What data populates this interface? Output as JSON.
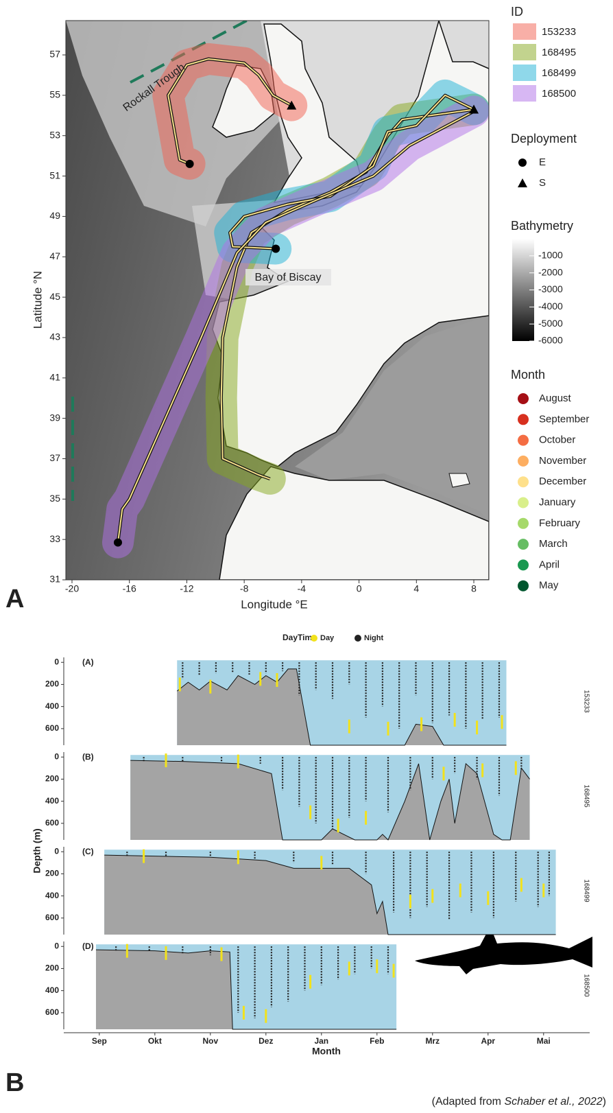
{
  "map": {
    "type": "map",
    "label": "A",
    "x_label": "Longitude °E",
    "y_label": "Latitude °N",
    "xlim": [
      -20.43,
      9.05
    ],
    "ylim": [
      31,
      58.7
    ],
    "xticks": [
      -20,
      -16,
      -12,
      -8,
      -4,
      0,
      4,
      8
    ],
    "yticks": [
      31,
      33,
      35,
      37,
      39,
      41,
      43,
      45,
      47,
      49,
      51,
      53,
      55,
      57
    ],
    "annotations": [
      "Rockall Trough",
      "Bay of Biscay"
    ],
    "id_title": "ID",
    "tracks": [
      {
        "name": "153233",
        "color": "#f2604f",
        "lon": [
          -11.8,
          -12.5,
          -12.8,
          -13.3,
          -12,
          -10.5,
          -8,
          -7,
          -6,
          -4.7
        ],
        "lat": [
          51.6,
          51.8,
          53,
          55,
          56.5,
          56.8,
          56.6,
          56,
          55,
          54.5
        ]
      },
      {
        "name": "168495",
        "color": "#86a81e",
        "lon": [
          8,
          5,
          3,
          2,
          0.5,
          -2,
          -5,
          -7.5,
          -8.5,
          -9.5,
          -9.6,
          -9.5,
          -7,
          -6.2
        ],
        "lat": [
          54.3,
          54,
          53.8,
          53,
          51.2,
          50.2,
          49.3,
          48.2,
          46.5,
          43,
          40,
          37,
          36.2,
          36
        ]
      },
      {
        "name": "168499",
        "color": "#1fb2d6",
        "lon": [
          8,
          6,
          4,
          2,
          1,
          -2,
          -5,
          -8,
          -9,
          -8.8,
          -5.8
        ],
        "lat": [
          54.3,
          55,
          53.5,
          53.2,
          51.5,
          50,
          49.6,
          49,
          48.2,
          47.5,
          47.4
        ]
      },
      {
        "name": "168500",
        "color": "#b070e8",
        "lon": [
          8,
          3.5,
          1,
          -3,
          -6.5,
          -8.5,
          -11,
          -13.5,
          -16,
          -16.5,
          -16.8
        ],
        "lat": [
          54.2,
          52.5,
          51,
          49.8,
          48.7,
          47.2,
          43,
          39,
          35,
          34.5,
          32.85
        ]
      }
    ],
    "deployment_title": "Deployment",
    "deployment": [
      "E",
      "S"
    ],
    "markers": [
      {
        "deployment": "E",
        "lon": -11.8,
        "lat": 51.6
      },
      {
        "deployment": "E",
        "lon": -5.8,
        "lat": 47.4
      },
      {
        "deployment": "E",
        "lon": -16.8,
        "lat": 32.85
      },
      {
        "deployment": "S",
        "lon": -4.7,
        "lat": 54.5
      },
      {
        "deployment": "S",
        "lon": 8,
        "lat": 54.3
      }
    ],
    "bathymetry_title": "Bathymetry",
    "bathymetry_lim": [
      0,
      -6000
    ],
    "bathymetry_ticks": [
      -1000,
      -2000,
      -3000,
      -4000,
      -5000,
      -6000
    ],
    "month_title": "Month",
    "months": [
      {
        "name": "August",
        "color": "#a50f15"
      },
      {
        "name": "September",
        "color": "#d7301f"
      },
      {
        "name": "October",
        "color": "#f46d43"
      },
      {
        "name": "November",
        "color": "#fdae61"
      },
      {
        "name": "December",
        "color": "#fee08b"
      },
      {
        "name": "January",
        "color": "#d9ef8b"
      },
      {
        "name": "February",
        "color": "#a6d96a"
      },
      {
        "name": "March",
        "color": "#66bd63"
      },
      {
        "name": "April",
        "color": "#1a9850"
      },
      {
        "name": "May",
        "color": "#00562e"
      }
    ]
  },
  "depth_chart": {
    "type": "area",
    "label": "B",
    "legend_title": "DayTime",
    "legend": [
      {
        "name": "Day",
        "color": "#f2e21c"
      },
      {
        "name": "Night",
        "color": "#222222"
      }
    ],
    "y_label": "Depth (m)",
    "x_label": "Month",
    "categories": [
      "Sep",
      "Okt",
      "Nov",
      "Dez",
      "Jan",
      "Feb",
      "Mrz",
      "Apr",
      "Mai"
    ],
    "xlim": [
      -0.64,
      8.83
    ],
    "ylim": [
      -45,
      750
    ],
    "yticks": [
      0,
      200,
      400,
      600
    ],
    "panels": [
      {
        "label": "(A)",
        "id": "153233",
        "seafloor": {
          "x": [
            1.4,
            1.6,
            1.8,
            2.0,
            2.3,
            2.5,
            2.8,
            3.0,
            3.2,
            3.4,
            3.55,
            3.8,
            5.5,
            5.7,
            6.0,
            6.2,
            7.33
          ],
          "depth": [
            260,
            180,
            250,
            170,
            250,
            120,
            200,
            120,
            180,
            60,
            60,
            750,
            750,
            560,
            580,
            750,
            750
          ]
        },
        "night": {
          "x": [
            1.5,
            1.8,
            2.1,
            2.4,
            2.7,
            3.0,
            3.3,
            3.6,
            3.9,
            4.2,
            4.5,
            4.8,
            5.1,
            5.4,
            5.7,
            6.0,
            6.3,
            6.6,
            6.9,
            7.2
          ],
          "depth": [
            150,
            120,
            100,
            90,
            110,
            100,
            80,
            300,
            250,
            330,
            200,
            500,
            400,
            600,
            300,
            550,
            480,
            600,
            520,
            500
          ]
        },
        "day": {
          "x": [
            1.45,
            2.0,
            2.9,
            3.2,
            4.5,
            5.2,
            5.8,
            6.4,
            6.8,
            7.25
          ],
          "depth": [
            200,
            220,
            150,
            160,
            580,
            600,
            560,
            520,
            590,
            540
          ]
        }
      },
      {
        "label": "(B)",
        "id": "168495",
        "seafloor": {
          "x": [
            0.56,
            1.5,
            2.5,
            3.1,
            3.3,
            4.0,
            4.2,
            4.6,
            5.0,
            5.1,
            5.2,
            5.5,
            5.75,
            5.95,
            6.15,
            6.3,
            6.4,
            6.6,
            6.8,
            7.1,
            7.25,
            7.4,
            7.6,
            7.75
          ],
          "depth": [
            30,
            40,
            60,
            150,
            750,
            750,
            650,
            750,
            750,
            700,
            750,
            400,
            60,
            750,
            400,
            200,
            600,
            60,
            150,
            700,
            750,
            750,
            100,
            200
          ]
        },
        "night": {
          "x": [
            0.8,
            1.5,
            2.2,
            2.9,
            3.3,
            3.6,
            3.9,
            4.2,
            4.5,
            4.8,
            5.2,
            5.6,
            6.0,
            6.4,
            6.8,
            7.2,
            7.6
          ],
          "depth": [
            40,
            40,
            50,
            60,
            300,
            450,
            600,
            650,
            550,
            400,
            500,
            300,
            200,
            150,
            200,
            350,
            120
          ]
        },
        "day": {
          "x": [
            1.2,
            2.5,
            3.8,
            4.3,
            4.8,
            6.2,
            6.9,
            7.5
          ],
          "depth": [
            30,
            40,
            500,
            620,
            550,
            150,
            120,
            100
          ]
        }
      },
      {
        "label": "(C)",
        "id": "168499",
        "seafloor": {
          "x": [
            0.09,
            1,
            2,
            3,
            3.5,
            4.5,
            4.9,
            5.0,
            5.1,
            5.2,
            8.22
          ],
          "depth": [
            30,
            40,
            50,
            80,
            150,
            150,
            300,
            560,
            450,
            750,
            750
          ]
        },
        "night": {
          "x": [
            0.5,
            1.2,
            2,
            2.8,
            3.5,
            4.2,
            4.8,
            5.3,
            5.6,
            5.9,
            6.3,
            6.7,
            7.1,
            7.5,
            7.9,
            8.1
          ],
          "depth": [
            40,
            40,
            50,
            70,
            100,
            120,
            200,
            550,
            600,
            500,
            620,
            550,
            600,
            450,
            500,
            400
          ]
        },
        "day": {
          "x": [
            0.8,
            2.5,
            4.0,
            5.6,
            6.0,
            6.5,
            7.0,
            7.6,
            8.0
          ],
          "depth": [
            40,
            50,
            100,
            450,
            400,
            350,
            420,
            300,
            350
          ]
        }
      },
      {
        "label": "(D)",
        "id": "168500",
        "seafloor": {
          "x": [
            -0.06,
            1.0,
            1.6,
            2.0,
            2.35,
            2.4,
            5.35
          ],
          "depth": [
            30,
            40,
            60,
            40,
            50,
            750,
            750
          ]
        },
        "night": {
          "x": [
            0.3,
            0.9,
            1.5,
            2.0,
            2.5,
            2.8,
            3.1,
            3.4,
            3.7,
            4.0,
            4.3,
            4.6,
            4.9,
            5.2
          ],
          "depth": [
            40,
            50,
            70,
            80,
            600,
            650,
            550,
            500,
            400,
            350,
            300,
            250,
            200,
            250
          ]
        },
        "day": {
          "x": [
            0.5,
            1.2,
            2.2,
            2.6,
            3.0,
            3.8,
            4.5,
            5.0,
            5.3
          ],
          "depth": [
            40,
            60,
            70,
            600,
            630,
            320,
            200,
            180,
            220
          ]
        }
      }
    ]
  },
  "credit": {
    "prefix": "(Adapted from ",
    "author": "Schaber et al., 2022",
    "suffix": ")"
  }
}
